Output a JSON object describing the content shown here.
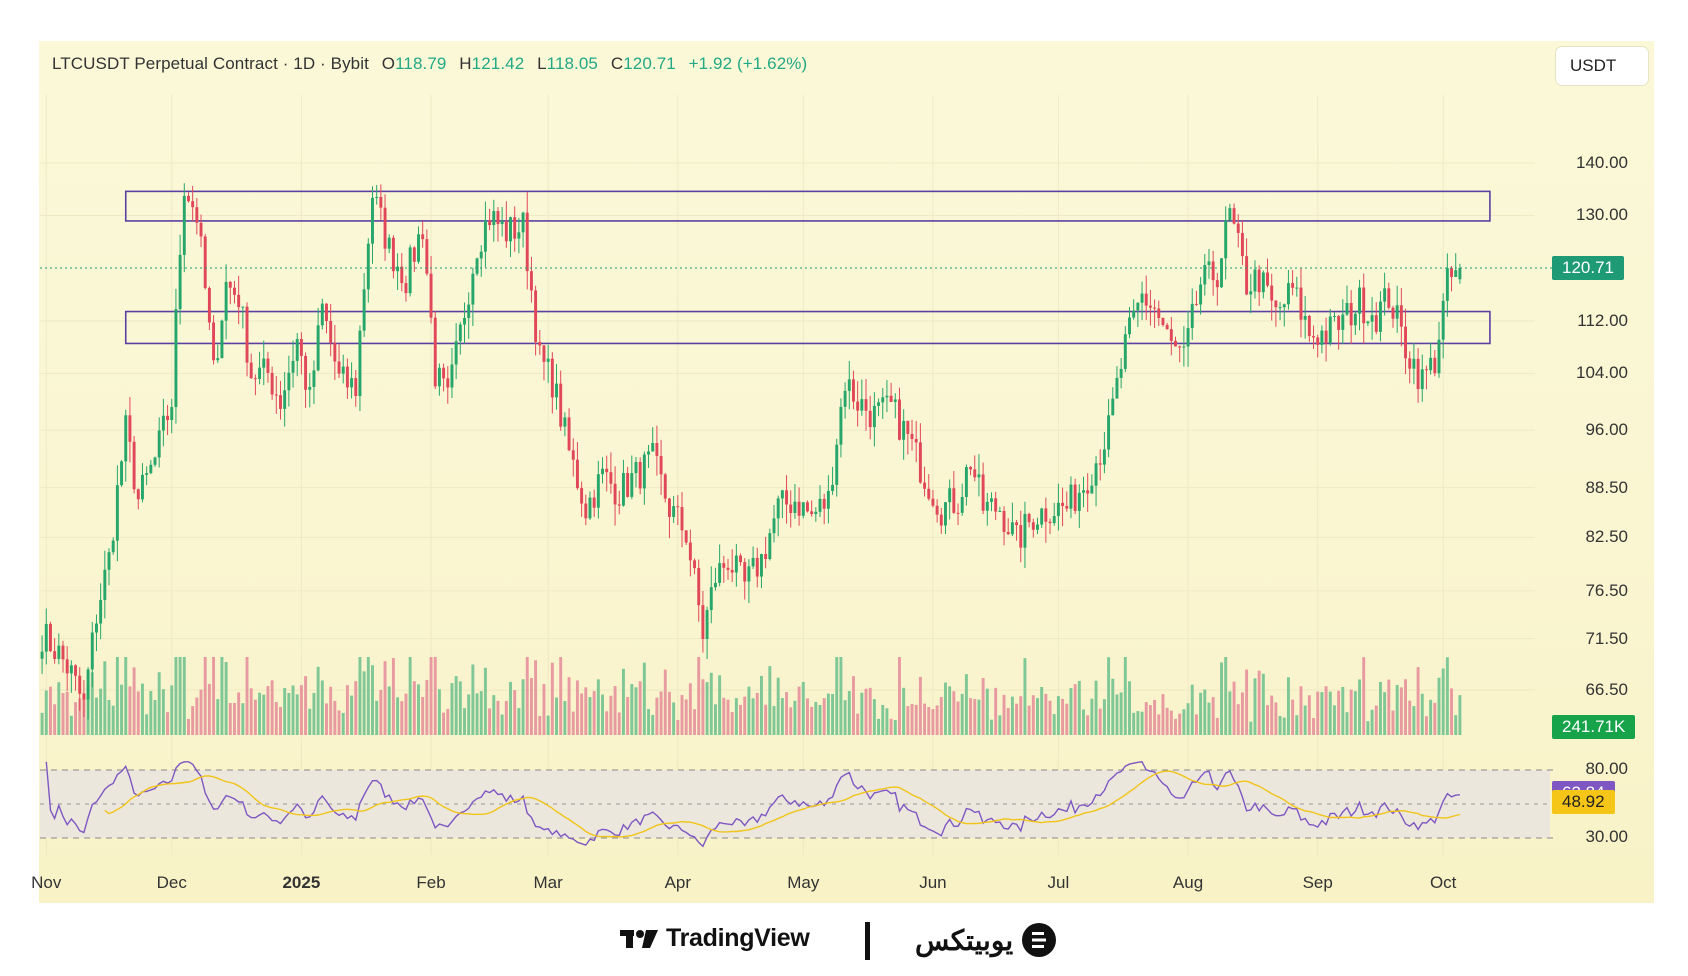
{
  "header": {
    "symbol": "LTCUSDT Perpetual Contract · 1D · Bybit",
    "o_key": "O",
    "o_val": "118.79",
    "h_key": "H",
    "h_val": "121.42",
    "l_key": "L",
    "l_val": "118.05",
    "c_key": "C",
    "c_val": "120.71",
    "change": "+1.92 (+1.62%)"
  },
  "currency": "USDT",
  "price_axis_labels": [
    "140.00",
    "130.00",
    "112.00",
    "104.00",
    "96.00",
    "88.50",
    "82.50",
    "76.50",
    "71.50",
    "66.50"
  ],
  "rsi_axis_labels": [
    "80.00",
    "30.00"
  ],
  "tags": {
    "last_price": "120.71",
    "volume": "241.71K",
    "rsi": "62.84",
    "rsi_ma": "48.92"
  },
  "colors": {
    "up": "#26a66b",
    "down": "#e0485a",
    "zone": "#5b3fa3",
    "rsi_line": "#7e57c2",
    "rsi_ma": "#f0c419",
    "last_price_tag": "#1e9a74",
    "volume_tag": "#17a34a",
    "rsi_tag": "#7e57c2",
    "rsi_ma_tag": "#f5c518"
  },
  "months": [
    {
      "label": "Nov",
      "year": false
    },
    {
      "label": "Dec",
      "year": false
    },
    {
      "label": "2025",
      "year": true
    },
    {
      "label": "Feb",
      "year": false
    },
    {
      "label": "Mar",
      "year": false
    },
    {
      "label": "Apr",
      "year": false
    },
    {
      "label": "May",
      "year": false
    },
    {
      "label": "Jun",
      "year": false
    },
    {
      "label": "Jul",
      "year": false
    },
    {
      "label": "Aug",
      "year": false
    },
    {
      "label": "Sep",
      "year": false
    },
    {
      "label": "Oct",
      "year": false
    }
  ],
  "chart_data": {
    "type": "candlestick",
    "symbol": "LTCUSDT",
    "interval": "1D",
    "x_range": [
      "Oct 2024",
      "Oct 2025"
    ],
    "y_ticks": [
      66.5,
      71.5,
      76.5,
      82.5,
      88.5,
      96,
      104,
      112,
      130,
      140
    ],
    "y_scale": "log",
    "last_price": 120.71,
    "zones": [
      {
        "low": 129,
        "high": 134.5,
        "start": "Nov 2024",
        "end": "Oct 2025"
      },
      {
        "low": 108.5,
        "high": 113.5,
        "start": "Nov 2024",
        "end": "Oct 2025"
      }
    ],
    "close_path": [
      [
        "Oct 31",
        72
      ],
      [
        "Nov 4",
        70
      ],
      [
        "Nov 7",
        68
      ],
      [
        "Nov 10",
        65
      ],
      [
        "Nov 13",
        74
      ],
      [
        "Nov 16",
        80
      ],
      [
        "Nov 20",
        96
      ],
      [
        "Nov 23",
        87
      ],
      [
        "Nov 27",
        92
      ],
      [
        "Dec 1",
        100
      ],
      [
        "Dec 4",
        136
      ],
      [
        "Dec 7",
        130
      ],
      [
        "Dec 11",
        104
      ],
      [
        "Dec 14",
        118
      ],
      [
        "Dec 17",
        116
      ],
      [
        "Dec 20",
        104
      ],
      [
        "Dec 24",
        104
      ],
      [
        "Dec 27",
        100
      ],
      [
        "Dec 31",
        109
      ],
      [
        "Jan 3",
        100
      ],
      [
        "Jan 6",
        114
      ],
      [
        "Jan 10",
        103
      ],
      [
        "Jan 14",
        102
      ],
      [
        "Jan 18",
        134
      ],
      [
        "Jan 22",
        124
      ],
      [
        "Jan 26",
        119
      ],
      [
        "Jan 30",
        128
      ],
      [
        "Feb 2",
        104
      ],
      [
        "Feb 5",
        100
      ],
      [
        "Feb 8",
        110
      ],
      [
        "Feb 12",
        125
      ],
      [
        "Feb 15",
        130
      ],
      [
        "Feb 19",
        127
      ],
      [
        "Feb 23",
        128
      ],
      [
        "Feb 27",
        106
      ],
      [
        "Mar 2",
        103
      ],
      [
        "Mar 6",
        93
      ],
      [
        "Mar 10",
        86
      ],
      [
        "Mar 14",
        90
      ],
      [
        "Mar 18",
        88
      ],
      [
        "Mar 22",
        90
      ],
      [
        "Mar 26",
        92
      ],
      [
        "Mar 30",
        86
      ],
      [
        "Apr 3",
        83
      ],
      [
        "Apr 7",
        72
      ],
      [
        "Apr 10",
        78
      ],
      [
        "Apr 13",
        80
      ],
      [
        "Apr 17",
        77
      ],
      [
        "Apr 21",
        80
      ],
      [
        "Apr 25",
        86
      ],
      [
        "Apr 29",
        87
      ],
      [
        "May 3",
        85
      ],
      [
        "May 7",
        87
      ],
      [
        "May 11",
        103
      ],
      [
        "May 14",
        100
      ],
      [
        "May 18",
        98
      ],
      [
        "May 22",
        99
      ],
      [
        "May 26",
        95
      ],
      [
        "May 30",
        90
      ],
      [
        "Jun 3",
        86
      ],
      [
        "Jun 7",
        87
      ],
      [
        "Jun 10",
        92
      ],
      [
        "Jun 13",
        86
      ],
      [
        "Jun 17",
        86
      ],
      [
        "Jun 21",
        82
      ],
      [
        "Jun 25",
        85
      ],
      [
        "Jun 29",
        86
      ],
      [
        "Jul 3",
        86
      ],
      [
        "Jul 7",
        89
      ],
      [
        "Jul 10",
        92
      ],
      [
        "Jul 13",
        96
      ],
      [
        "Jul 17",
        108
      ],
      [
        "Jul 21",
        116
      ],
      [
        "Jul 24",
        114
      ],
      [
        "Jul 28",
        108
      ],
      [
        "Jul 31",
        106
      ],
      [
        "Aug 4",
        118
      ],
      [
        "Aug 8",
        120
      ],
      [
        "Aug 11",
        130
      ],
      [
        "Aug 15",
        118
      ],
      [
        "Aug 18",
        119
      ],
      [
        "Aug 22",
        113
      ],
      [
        "Aug 26",
        117
      ],
      [
        "Aug 30",
        110
      ],
      [
        "Sep 3",
        110
      ],
      [
        "Sep 7",
        112
      ],
      [
        "Sep 11",
        115
      ],
      [
        "Sep 15",
        113
      ],
      [
        "Sep 18",
        116
      ],
      [
        "Sep 22",
        108
      ],
      [
        "Sep 26",
        103
      ],
      [
        "Sep 29",
        106
      ],
      [
        "Oct 2",
        118
      ],
      [
        "Oct 5",
        120.71
      ]
    ],
    "rsi": {
      "length_hint": "14",
      "levels": [
        80,
        30
      ],
      "last": 62.84,
      "ma_last": 48.92
    },
    "volume_last": "241.71K"
  }
}
